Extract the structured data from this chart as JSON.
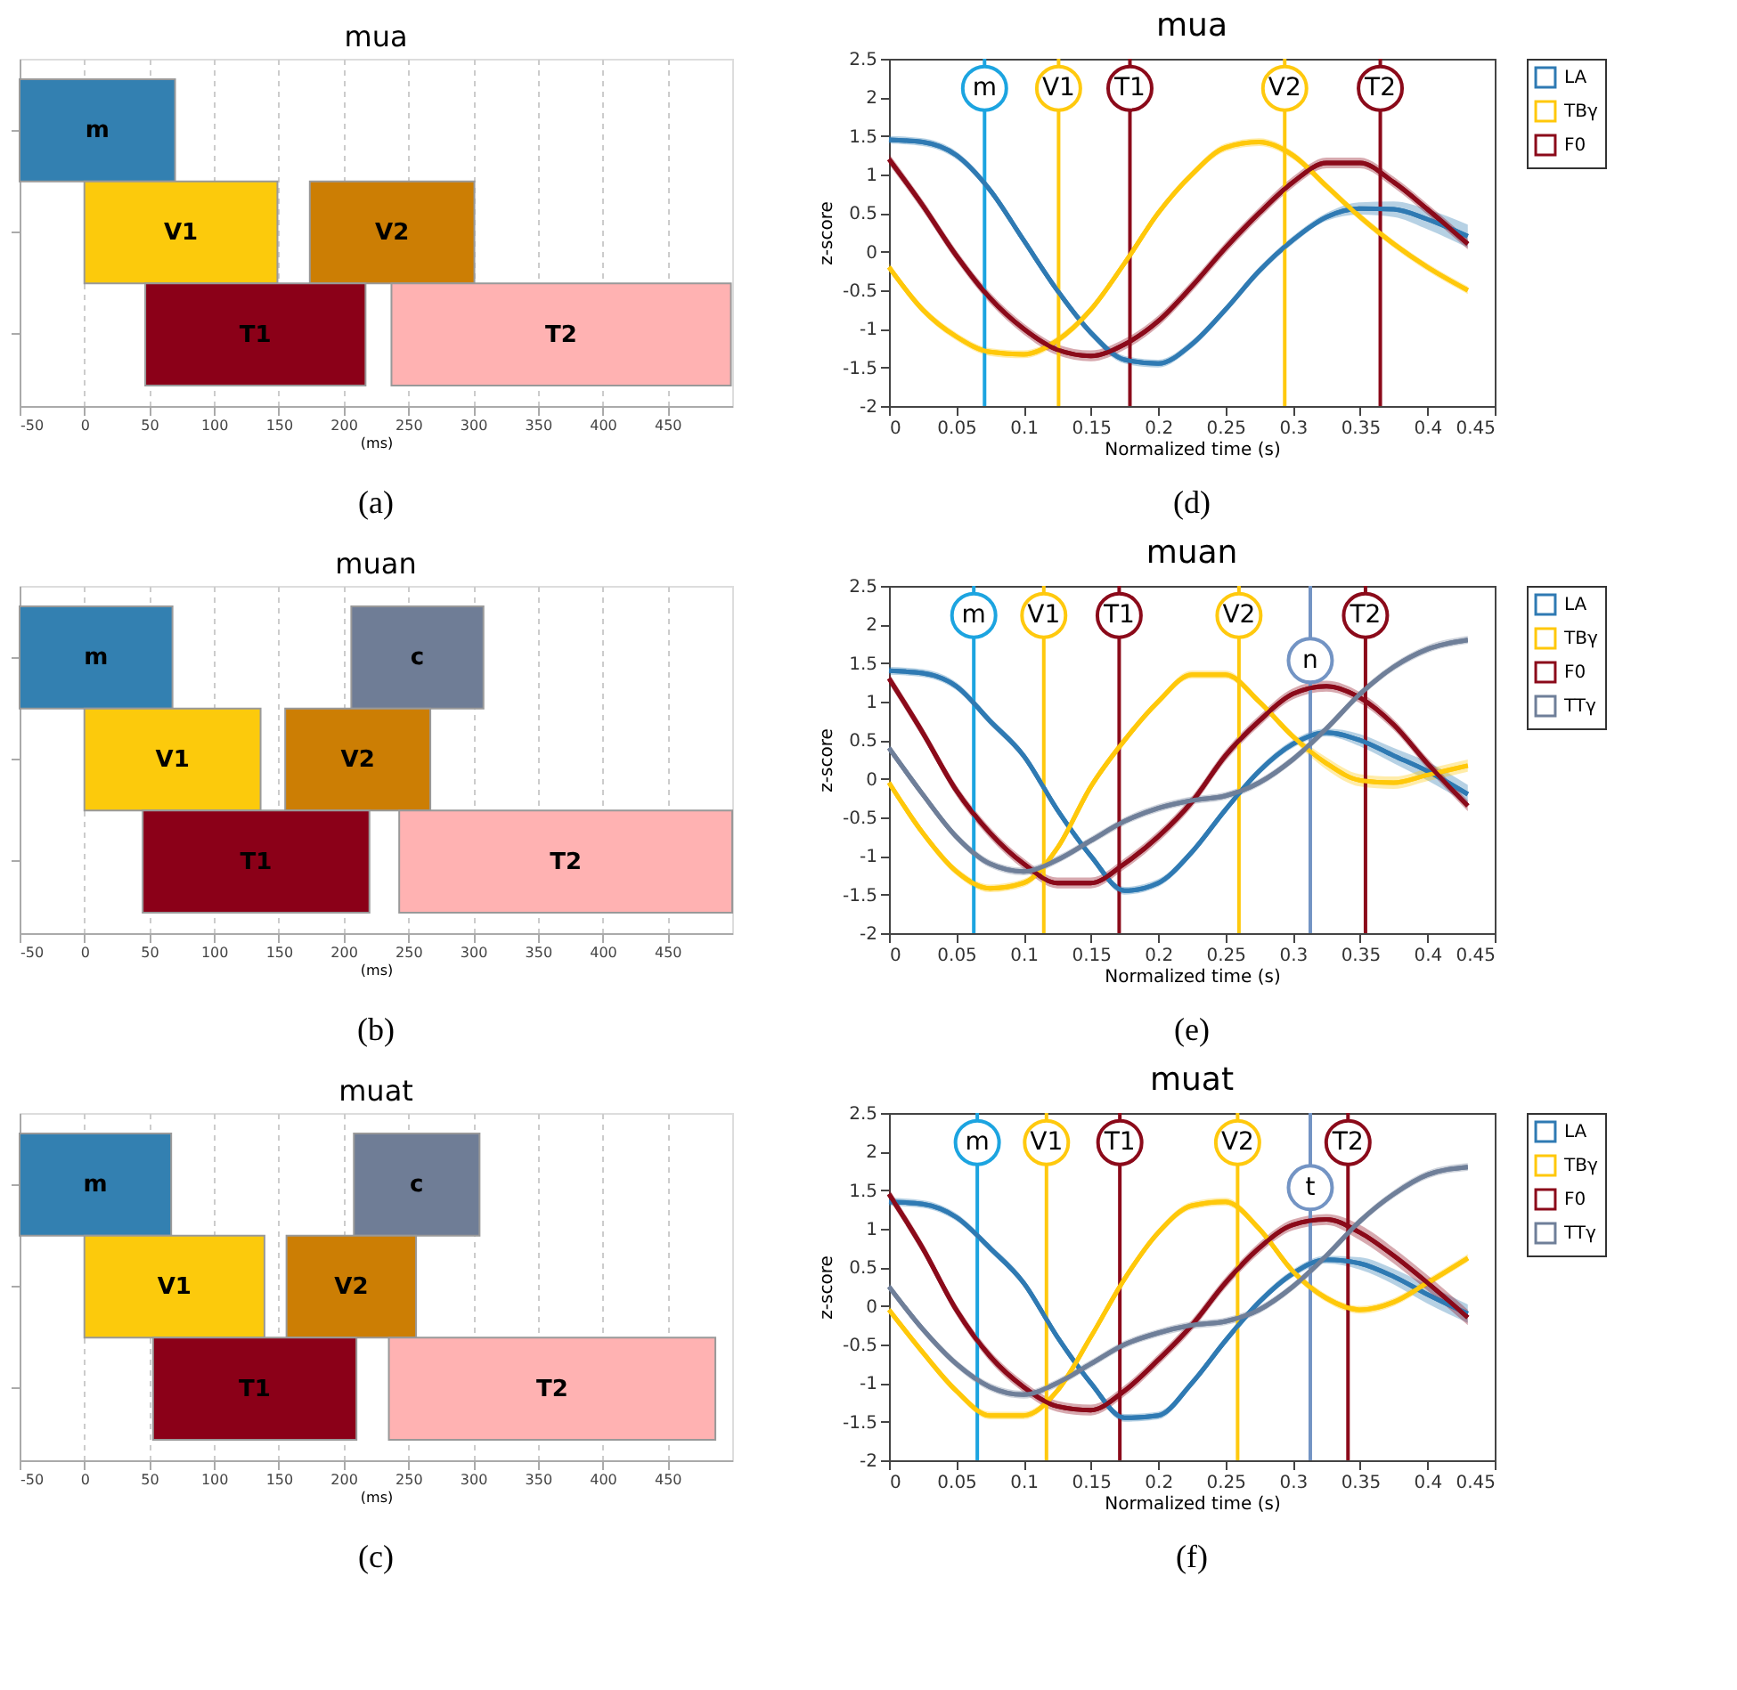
{
  "chart_data": [
    {
      "type": "bar",
      "orientation": "horizontal",
      "title": "mua",
      "xlabel": "(ms)",
      "categories": [
        null,
        null,
        null
      ],
      "xlim": [
        -50,
        500
      ],
      "xticks": [
        -50,
        0,
        50,
        100,
        150,
        200,
        250,
        300,
        350,
        400,
        450
      ],
      "grid": "x",
      "tick_labels": "x",
      "annotations": [
        "(a)"
      ],
      "series": [
        {
          "name": "m",
          "color": "#3380b1",
          "values": [
            120,
            null,
            null
          ],
          "base": [
            -50,
            null,
            null
          ]
        },
        {
          "name": "V1",
          "color": "#fcca0c",
          "values": [
            null,
            149,
            null
          ],
          "base": [
            null,
            0,
            null
          ]
        },
        {
          "name": "V2",
          "color": "#cc7e04",
          "values": [
            null,
            127,
            null
          ],
          "base": [
            null,
            174,
            null
          ]
        },
        {
          "name": "T1",
          "color": "#8b0018",
          "values": [
            null,
            null,
            170
          ],
          "base": [
            null,
            null,
            47
          ]
        },
        {
          "name": "T2",
          "color": "#ffb2b2",
          "values": [
            null,
            null,
            262
          ],
          "base": [
            null,
            null,
            237
          ]
        }
      ]
    },
    {
      "type": "line",
      "title": "mua",
      "xlabel": "Normalized time (s)",
      "ylabel": "z-score",
      "xlim": [
        0,
        0.45
      ],
      "ylim": [
        -2,
        2.5
      ],
      "xticks": [
        0,
        0.05,
        0.1,
        0.15,
        0.2,
        0.25,
        0.3,
        0.35,
        0.4,
        0.45
      ],
      "yticks": [
        -2,
        -1.5,
        -1,
        -0.5,
        0,
        0.5,
        1,
        1.5,
        2,
        2.5
      ],
      "legend": "top right",
      "marker": "none",
      "line_style": "solid",
      "annotations": [
        "(d)"
      ],
      "x": [
        0,
        0.025,
        0.05,
        0.075,
        0.1,
        0.125,
        0.15,
        0.175,
        0.2,
        0.225,
        0.25,
        0.275,
        0.3,
        0.325,
        0.35,
        0.375,
        0.4,
        0.43
      ],
      "series": [
        {
          "name": "LA",
          "color": "#2f7ab3",
          "values": [
            1.45,
            1.42,
            1.25,
            0.8,
            0.15,
            -0.5,
            -1.05,
            -1.4,
            -1.45,
            -1.2,
            -0.75,
            -0.25,
            0.15,
            0.45,
            0.56,
            0.55,
            0.42,
            0.2
          ],
          "lower": [
            1.4,
            1.37,
            1.2,
            0.75,
            0.1,
            -0.55,
            -1.1,
            -1.45,
            -1.5,
            -1.25,
            -0.8,
            -0.3,
            0.1,
            0.4,
            0.48,
            0.45,
            0.29,
            0.05
          ],
          "upper": [
            1.5,
            1.47,
            1.3,
            0.85,
            0.2,
            -0.45,
            -1.0,
            -1.35,
            -1.4,
            -1.15,
            -0.7,
            -0.2,
            0.2,
            0.5,
            0.64,
            0.65,
            0.55,
            0.35
          ]
        },
        {
          "name": "TBγ",
          "color": "#ffc80a",
          "values": [
            -0.2,
            -0.75,
            -1.1,
            -1.3,
            -1.33,
            -1.15,
            -0.75,
            -0.15,
            0.5,
            1.0,
            1.35,
            1.42,
            1.25,
            0.85,
            0.45,
            0.1,
            -0.2,
            -0.5
          ],
          "lower": [
            -0.25,
            -0.8,
            -1.15,
            -1.35,
            -1.38,
            -1.2,
            -0.8,
            -0.2,
            0.45,
            0.95,
            1.3,
            1.37,
            1.2,
            0.8,
            0.4,
            0.05,
            -0.25,
            -0.55
          ],
          "upper": [
            -0.15,
            -0.7,
            -1.05,
            -1.25,
            -1.28,
            -1.1,
            -0.7,
            -0.1,
            0.55,
            1.05,
            1.4,
            1.47,
            1.3,
            0.9,
            0.5,
            0.15,
            -0.15,
            -0.45
          ]
        },
        {
          "name": "F0",
          "color": "#8b0a1a",
          "values": [
            1.2,
            0.6,
            -0.05,
            -0.6,
            -1.0,
            -1.27,
            -1.35,
            -1.2,
            -0.9,
            -0.45,
            0.05,
            0.5,
            0.9,
            1.15,
            1.15,
            0.9,
            0.55,
            0.1
          ],
          "lower": [
            1.13,
            0.53,
            -0.12,
            -0.67,
            -1.07,
            -1.34,
            -1.42,
            -1.27,
            -0.97,
            -0.52,
            -0.02,
            0.43,
            0.83,
            1.08,
            1.08,
            0.83,
            0.48,
            0.03
          ],
          "upper": [
            1.27,
            0.67,
            0.02,
            -0.53,
            -0.93,
            -1.2,
            -1.28,
            -1.13,
            -0.83,
            -0.38,
            0.12,
            0.57,
            0.97,
            1.22,
            1.22,
            0.97,
            0.62,
            0.17
          ]
        }
      ],
      "ref_lines": [
        {
          "axis": "x",
          "value": 0.071,
          "label": "m",
          "color": "#1ca4e0"
        },
        {
          "axis": "x",
          "value": 0.126,
          "label": "V1",
          "color": "#ffc90e"
        },
        {
          "axis": "x",
          "value": 0.179,
          "label": "T1",
          "color": "#8b0a1a"
        },
        {
          "axis": "x",
          "value": 0.294,
          "label": "V2",
          "color": "#ffc90e"
        },
        {
          "axis": "x",
          "value": 0.365,
          "label": "T2",
          "color": "#8b0a1a"
        }
      ]
    },
    {
      "type": "bar",
      "orientation": "horizontal",
      "title": "muan",
      "xlabel": "(ms)",
      "categories": [
        null,
        null,
        null
      ],
      "xlim": [
        -50,
        500
      ],
      "xticks": [
        -50,
        0,
        50,
        100,
        150,
        200,
        250,
        300,
        350,
        400,
        450
      ],
      "grid": "x",
      "tick_labels": "x",
      "annotations": [
        "(b)"
      ],
      "series": [
        {
          "name": "m",
          "color": "#3380b1",
          "values": [
            118,
            null,
            null
          ],
          "base": [
            -50,
            null,
            null
          ]
        },
        {
          "name": "c",
          "color": "#6f7d96",
          "values": [
            102,
            null,
            null
          ],
          "base": [
            206,
            null,
            null
          ]
        },
        {
          "name": "V1",
          "color": "#fcca0c",
          "values": [
            null,
            136,
            null
          ],
          "base": [
            null,
            0,
            null
          ]
        },
        {
          "name": "V2",
          "color": "#cc7e04",
          "values": [
            null,
            112,
            null
          ],
          "base": [
            null,
            155,
            null
          ]
        },
        {
          "name": "T1",
          "color": "#8b0018",
          "values": [
            null,
            null,
            175
          ],
          "base": [
            null,
            null,
            45
          ]
        },
        {
          "name": "T2",
          "color": "#ffb2b2",
          "values": [
            null,
            null,
            257
          ],
          "base": [
            null,
            null,
            243
          ]
        }
      ]
    },
    {
      "type": "line",
      "title": "muan",
      "xlabel": "Normalized time (s)",
      "ylabel": "z-score",
      "xlim": [
        0,
        0.45
      ],
      "ylim": [
        -2,
        2.5
      ],
      "xticks": [
        0,
        0.05,
        0.1,
        0.15,
        0.2,
        0.25,
        0.3,
        0.35,
        0.4,
        0.45
      ],
      "yticks": [
        -2,
        -1.5,
        -1,
        -0.5,
        0,
        0.5,
        1,
        1.5,
        2,
        2.5
      ],
      "legend": "top right",
      "marker": "none",
      "line_style": "solid",
      "annotations": [
        "(e)"
      ],
      "x": [
        0,
        0.025,
        0.05,
        0.075,
        0.1,
        0.125,
        0.15,
        0.175,
        0.2,
        0.225,
        0.25,
        0.275,
        0.3,
        0.325,
        0.35,
        0.375,
        0.4,
        0.43
      ],
      "series": [
        {
          "name": "LA",
          "color": "#2f7ab3",
          "values": [
            1.4,
            1.37,
            1.2,
            0.75,
            0.3,
            -0.4,
            -1.0,
            -1.45,
            -1.35,
            -0.95,
            -0.4,
            0.1,
            0.45,
            0.6,
            0.5,
            0.3,
            0.1,
            -0.2
          ],
          "lower": [
            1.35,
            1.32,
            1.15,
            0.7,
            0.25,
            -0.45,
            -1.05,
            -1.5,
            -1.4,
            -1.0,
            -0.45,
            0.05,
            0.4,
            0.55,
            0.42,
            0.2,
            -0.02,
            -0.32
          ],
          "upper": [
            1.45,
            1.42,
            1.25,
            0.8,
            0.35,
            -0.35,
            -0.95,
            -1.4,
            -1.3,
            -0.9,
            -0.35,
            0.15,
            0.5,
            0.65,
            0.58,
            0.4,
            0.22,
            -0.08
          ]
        },
        {
          "name": "TBγ",
          "color": "#ffc80a",
          "values": [
            -0.05,
            -0.7,
            -1.2,
            -1.42,
            -1.35,
            -0.9,
            -0.1,
            0.5,
            1.0,
            1.35,
            1.35,
            1.0,
            0.55,
            0.2,
            -0.02,
            -0.05,
            0.05,
            0.17
          ],
          "lower": [
            -0.1,
            -0.75,
            -1.25,
            -1.47,
            -1.4,
            -0.95,
            -0.15,
            0.45,
            0.95,
            1.3,
            1.3,
            0.95,
            0.5,
            0.12,
            -0.1,
            -0.13,
            -0.03,
            0.09
          ],
          "upper": [
            0.0,
            -0.65,
            -1.15,
            -1.37,
            -1.3,
            -0.85,
            -0.05,
            0.55,
            1.05,
            1.4,
            1.4,
            1.05,
            0.6,
            0.28,
            0.06,
            0.03,
            0.13,
            0.25
          ]
        },
        {
          "name": "F0",
          "color": "#8b0a1a",
          "values": [
            1.3,
            0.6,
            -0.15,
            -0.7,
            -1.1,
            -1.35,
            -1.35,
            -1.1,
            -0.75,
            -0.3,
            0.3,
            0.75,
            1.1,
            1.2,
            1.05,
            0.7,
            0.2,
            -0.35
          ],
          "lower": [
            1.23,
            0.53,
            -0.22,
            -0.77,
            -1.17,
            -1.42,
            -1.42,
            -1.17,
            -0.82,
            -0.37,
            0.23,
            0.68,
            1.03,
            1.13,
            0.98,
            0.63,
            0.13,
            -0.42
          ],
          "upper": [
            1.37,
            0.67,
            -0.08,
            -0.63,
            -1.03,
            -1.28,
            -1.28,
            -1.03,
            -0.68,
            -0.23,
            0.37,
            0.82,
            1.17,
            1.27,
            1.12,
            0.77,
            0.27,
            -0.28
          ]
        },
        {
          "name": "TTγ",
          "color": "#6f7f99",
          "values": [
            0.4,
            -0.2,
            -0.75,
            -1.1,
            -1.2,
            -1.05,
            -0.8,
            -0.55,
            -0.38,
            -0.28,
            -0.22,
            -0.05,
            0.25,
            0.65,
            1.1,
            1.45,
            1.68,
            1.8
          ],
          "lower": [
            0.35,
            -0.25,
            -0.8,
            -1.15,
            -1.25,
            -1.1,
            -0.85,
            -0.6,
            -0.43,
            -0.33,
            -0.27,
            -0.1,
            0.2,
            0.6,
            1.05,
            1.4,
            1.63,
            1.75
          ],
          "upper": [
            0.45,
            -0.15,
            -0.7,
            -1.05,
            -1.15,
            -1.0,
            -0.75,
            -0.5,
            -0.33,
            -0.23,
            -0.17,
            0.0,
            0.3,
            0.7,
            1.15,
            1.5,
            1.73,
            1.85
          ]
        }
      ],
      "ref_lines": [
        {
          "axis": "x",
          "value": 0.063,
          "label": "m",
          "color": "#1ca4e0"
        },
        {
          "axis": "x",
          "value": 0.115,
          "label": "V1",
          "color": "#ffc90e"
        },
        {
          "axis": "x",
          "value": 0.171,
          "label": "T1",
          "color": "#8b0a1a"
        },
        {
          "axis": "x",
          "value": 0.26,
          "label": "V2",
          "color": "#ffc90e"
        },
        {
          "axis": "x",
          "value": 0.313,
          "label": "n",
          "color": "#7394c4"
        },
        {
          "axis": "x",
          "value": 0.354,
          "label": "T2",
          "color": "#8b0a1a"
        }
      ]
    },
    {
      "type": "bar",
      "orientation": "horizontal",
      "title": "muat",
      "xlabel": "(ms)",
      "categories": [
        null,
        null,
        null
      ],
      "xlim": [
        -50,
        500
      ],
      "xticks": [
        -50,
        0,
        50,
        100,
        150,
        200,
        250,
        300,
        350,
        400,
        450
      ],
      "grid": "x",
      "tick_labels": "x",
      "annotations": [
        "(c)"
      ],
      "series": [
        {
          "name": "m",
          "color": "#3380b1",
          "values": [
            117,
            null,
            null
          ],
          "base": [
            -50,
            null,
            null
          ]
        },
        {
          "name": "c",
          "color": "#6f7d96",
          "values": [
            97,
            null,
            null
          ],
          "base": [
            208,
            null,
            null
          ]
        },
        {
          "name": "V1",
          "color": "#fcca0c",
          "values": [
            null,
            139,
            null
          ],
          "base": [
            null,
            0,
            null
          ]
        },
        {
          "name": "V2",
          "color": "#cc7e04",
          "values": [
            null,
            100,
            null
          ],
          "base": [
            null,
            156,
            null
          ]
        },
        {
          "name": "T1",
          "color": "#8b0018",
          "values": [
            null,
            null,
            157
          ],
          "base": [
            null,
            null,
            53
          ]
        },
        {
          "name": "T2",
          "color": "#ffb2b2",
          "values": [
            null,
            null,
            252
          ],
          "base": [
            null,
            null,
            235
          ]
        }
      ]
    },
    {
      "type": "line",
      "title": "muat",
      "xlabel": "Normalized time (s)",
      "ylabel": "z-score",
      "xlim": [
        0,
        0.45
      ],
      "ylim": [
        -2,
        2.5
      ],
      "xticks": [
        0,
        0.05,
        0.1,
        0.15,
        0.2,
        0.25,
        0.3,
        0.35,
        0.4,
        0.45
      ],
      "yticks": [
        -2,
        -1.5,
        -1,
        -0.5,
        0,
        0.5,
        1,
        1.5,
        2,
        2.5
      ],
      "legend": "top right",
      "marker": "none",
      "line_style": "solid",
      "annotations": [
        "(f)"
      ],
      "x": [
        0,
        0.025,
        0.05,
        0.075,
        0.1,
        0.125,
        0.15,
        0.175,
        0.2,
        0.225,
        0.25,
        0.275,
        0.3,
        0.325,
        0.35,
        0.375,
        0.4,
        0.43
      ],
      "series": [
        {
          "name": "LA",
          "color": "#2f7ab3",
          "values": [
            1.35,
            1.32,
            1.15,
            0.75,
            0.3,
            -0.4,
            -1.0,
            -1.45,
            -1.42,
            -1.0,
            -0.45,
            0.05,
            0.42,
            0.6,
            0.55,
            0.38,
            0.15,
            -0.1
          ],
          "lower": [
            1.3,
            1.27,
            1.1,
            0.7,
            0.25,
            -0.45,
            -1.05,
            -1.5,
            -1.47,
            -1.05,
            -0.5,
            0.0,
            0.37,
            0.55,
            0.47,
            0.28,
            0.03,
            -0.22
          ],
          "upper": [
            1.4,
            1.37,
            1.2,
            0.8,
            0.35,
            -0.35,
            -0.95,
            -1.4,
            -1.37,
            -0.95,
            -0.4,
            0.1,
            0.47,
            0.65,
            0.63,
            0.48,
            0.27,
            0.02
          ]
        },
        {
          "name": "TBγ",
          "color": "#ffc80a",
          "values": [
            -0.05,
            -0.6,
            -1.1,
            -1.42,
            -1.42,
            -1.1,
            -0.4,
            0.35,
            0.95,
            1.3,
            1.35,
            1.0,
            0.45,
            0.1,
            -0.05,
            0.05,
            0.3,
            0.62
          ],
          "lower": [
            -0.1,
            -0.65,
            -1.15,
            -1.47,
            -1.47,
            -1.15,
            -0.45,
            0.3,
            0.9,
            1.25,
            1.3,
            0.95,
            0.4,
            0.05,
            -0.1,
            0.0,
            0.25,
            0.57
          ],
          "upper": [
            0.0,
            -0.55,
            -1.05,
            -1.37,
            -1.37,
            -1.05,
            -0.35,
            0.4,
            1.0,
            1.35,
            1.4,
            1.05,
            0.5,
            0.15,
            0.0,
            0.1,
            0.35,
            0.67
          ]
        },
        {
          "name": "F0",
          "color": "#8b0a1a",
          "values": [
            1.45,
            0.75,
            -0.05,
            -0.65,
            -1.05,
            -1.3,
            -1.35,
            -1.1,
            -0.7,
            -0.25,
            0.3,
            0.75,
            1.05,
            1.12,
            0.95,
            0.65,
            0.3,
            -0.15
          ],
          "lower": [
            1.38,
            0.68,
            -0.12,
            -0.72,
            -1.12,
            -1.37,
            -1.42,
            -1.17,
            -0.77,
            -0.32,
            0.23,
            0.68,
            0.98,
            1.05,
            0.85,
            0.55,
            0.2,
            -0.25
          ],
          "upper": [
            1.52,
            0.82,
            0.02,
            -0.58,
            -0.98,
            -1.23,
            -1.28,
            -1.03,
            -0.63,
            -0.18,
            0.37,
            0.82,
            1.12,
            1.19,
            1.05,
            0.75,
            0.4,
            -0.05
          ]
        },
        {
          "name": "TTγ",
          "color": "#6f7f99",
          "values": [
            0.25,
            -0.3,
            -0.75,
            -1.05,
            -1.15,
            -1.0,
            -0.75,
            -0.5,
            -0.35,
            -0.25,
            -0.2,
            -0.05,
            0.25,
            0.65,
            1.1,
            1.45,
            1.7,
            1.8
          ],
          "lower": [
            0.2,
            -0.35,
            -0.8,
            -1.1,
            -1.2,
            -1.05,
            -0.8,
            -0.55,
            -0.4,
            -0.3,
            -0.25,
            -0.1,
            0.2,
            0.6,
            1.05,
            1.4,
            1.65,
            1.75
          ],
          "upper": [
            0.3,
            -0.25,
            -0.7,
            -1.0,
            -1.1,
            -0.95,
            -0.7,
            -0.45,
            -0.3,
            -0.2,
            -0.15,
            0.0,
            0.3,
            0.7,
            1.15,
            1.5,
            1.75,
            1.85
          ]
        }
      ],
      "ref_lines": [
        {
          "axis": "x",
          "value": 0.0656,
          "label": "m",
          "color": "#1ca4e0"
        },
        {
          "axis": "x",
          "value": 0.117,
          "label": "V1",
          "color": "#ffc90e"
        },
        {
          "axis": "x",
          "value": 0.1715,
          "label": "T1",
          "color": "#8b0a1a"
        },
        {
          "axis": "x",
          "value": 0.259,
          "label": "V2",
          "color": "#ffc90e"
        },
        {
          "axis": "x",
          "value": 0.313,
          "label": "t",
          "color": "#7394c4"
        },
        {
          "axis": "x",
          "value": 0.341,
          "label": "T2",
          "color": "#8b0a1a"
        }
      ]
    }
  ]
}
